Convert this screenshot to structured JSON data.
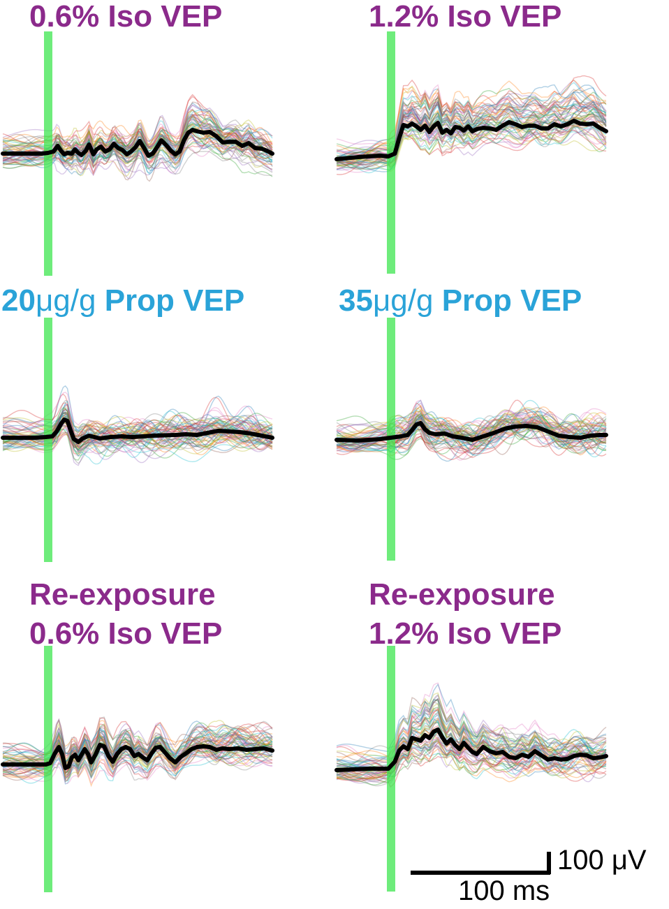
{
  "colors": {
    "iso": "#8b2a8b",
    "prop": "#2aa3d8",
    "stimulus": "#3ee64f",
    "mean": "#000000"
  },
  "panels": [
    {
      "id": "p1",
      "title_lines": [
        "0.6% Iso VEP"
      ],
      "title_color": "iso",
      "chart_data": {
        "type": "line",
        "title": "0.6% Iso VEP",
        "n_trials": 60,
        "mean_response": [
          [
            0,
            0
          ],
          [
            36,
            0
          ],
          [
            42,
            1
          ],
          [
            47,
            3
          ],
          [
            51,
            11
          ],
          [
            54,
            4
          ],
          [
            57,
            -1
          ],
          [
            60,
            1
          ],
          [
            64,
            0
          ],
          [
            67,
            6
          ],
          [
            70,
            1
          ],
          [
            73,
            -2
          ],
          [
            77,
            4
          ],
          [
            80,
            13
          ],
          [
            84,
            -1
          ],
          [
            87,
            6
          ],
          [
            91,
            10
          ],
          [
            95,
            3
          ],
          [
            99,
            6
          ],
          [
            103,
            14
          ],
          [
            107,
            8
          ],
          [
            111,
            5
          ],
          [
            115,
            -1
          ],
          [
            119,
            3
          ],
          [
            123,
            9
          ],
          [
            127,
            18
          ],
          [
            131,
            8
          ],
          [
            135,
            -3
          ],
          [
            139,
            0
          ],
          [
            143,
            9
          ],
          [
            147,
            19
          ],
          [
            151,
            13
          ],
          [
            156,
            4
          ],
          [
            160,
            -1
          ],
          [
            164,
            3
          ],
          [
            168,
            19
          ],
          [
            172,
            30
          ],
          [
            176,
            34
          ],
          [
            180,
            32
          ],
          [
            186,
            30
          ],
          [
            192,
            31
          ],
          [
            198,
            25
          ],
          [
            204,
            16
          ],
          [
            210,
            17
          ],
          [
            216,
            17
          ],
          [
            222,
            11
          ],
          [
            228,
            15
          ],
          [
            234,
            8
          ],
          [
            240,
            7
          ],
          [
            245,
            4
          ],
          [
            250,
            0
          ]
        ]
      }
    },
    {
      "id": "p2",
      "title_lines": [
        "1.2% Iso VEP"
      ],
      "title_color": "iso",
      "chart_data": {
        "type": "line",
        "title": "1.2% Iso VEP",
        "n_trials": 60,
        "mean_response": [
          [
            0,
            0
          ],
          [
            20,
            3
          ],
          [
            40,
            5
          ],
          [
            48,
            4
          ],
          [
            54,
            8
          ],
          [
            58,
            30
          ],
          [
            62,
            49
          ],
          [
            66,
            47
          ],
          [
            70,
            51
          ],
          [
            74,
            47
          ],
          [
            78,
            42
          ],
          [
            82,
            48
          ],
          [
            86,
            39
          ],
          [
            90,
            47
          ],
          [
            94,
            52
          ],
          [
            98,
            38
          ],
          [
            102,
            42
          ],
          [
            106,
            37
          ],
          [
            110,
            46
          ],
          [
            114,
            45
          ],
          [
            118,
            41
          ],
          [
            122,
            47
          ],
          [
            126,
            40
          ],
          [
            130,
            43
          ],
          [
            136,
            45
          ],
          [
            142,
            44
          ],
          [
            148,
            42
          ],
          [
            154,
            48
          ],
          [
            160,
            53
          ],
          [
            166,
            50
          ],
          [
            172,
            46
          ],
          [
            178,
            48
          ],
          [
            184,
            48
          ],
          [
            190,
            44
          ],
          [
            196,
            44
          ],
          [
            202,
            50
          ],
          [
            208,
            47
          ],
          [
            214,
            50
          ],
          [
            220,
            55
          ],
          [
            226,
            51
          ],
          [
            232,
            50
          ],
          [
            238,
            51
          ],
          [
            244,
            45
          ],
          [
            250,
            40
          ]
        ]
      }
    },
    {
      "id": "p3",
      "title_lines": [
        "20μg/g Prop VEP"
      ],
      "title_color": "prop",
      "chart_data": {
        "type": "line",
        "title": "20μg/g Prop VEP",
        "n_trials": 60,
        "mean_response": [
          [
            0,
            0
          ],
          [
            30,
            0
          ],
          [
            40,
            1
          ],
          [
            46,
            2
          ],
          [
            50,
            9
          ],
          [
            54,
            20
          ],
          [
            57,
            26
          ],
          [
            60,
            24
          ],
          [
            63,
            10
          ],
          [
            66,
            -2
          ],
          [
            70,
            -6
          ],
          [
            74,
            -1
          ],
          [
            80,
            3
          ],
          [
            90,
            -1
          ],
          [
            100,
            1
          ],
          [
            110,
            2
          ],
          [
            120,
            1
          ],
          [
            140,
            3
          ],
          [
            160,
            4
          ],
          [
            170,
            5
          ],
          [
            180,
            4
          ],
          [
            190,
            7
          ],
          [
            200,
            10
          ],
          [
            210,
            9
          ],
          [
            220,
            8
          ],
          [
            230,
            6
          ],
          [
            240,
            3
          ],
          [
            250,
            0
          ]
        ]
      }
    },
    {
      "id": "p4",
      "title_lines": [
        "35μg/g Prop VEP"
      ],
      "title_color": "prop",
      "chart_data": {
        "type": "line",
        "title": "35μg/g Prop VEP",
        "n_trials": 60,
        "mean_response": [
          [
            0,
            0
          ],
          [
            20,
            -1
          ],
          [
            40,
            1
          ],
          [
            50,
            3
          ],
          [
            60,
            5
          ],
          [
            66,
            7
          ],
          [
            70,
            14
          ],
          [
            74,
            22
          ],
          [
            78,
            24
          ],
          [
            82,
            15
          ],
          [
            86,
            10
          ],
          [
            92,
            8
          ],
          [
            100,
            9
          ],
          [
            108,
            5
          ],
          [
            116,
            3
          ],
          [
            126,
            0
          ],
          [
            136,
            5
          ],
          [
            146,
            10
          ],
          [
            156,
            16
          ],
          [
            166,
            19
          ],
          [
            176,
            20
          ],
          [
            186,
            18
          ],
          [
            196,
            12
          ],
          [
            206,
            6
          ],
          [
            216,
            4
          ],
          [
            226,
            3
          ],
          [
            236,
            6
          ],
          [
            244,
            7
          ],
          [
            250,
            7
          ]
        ]
      }
    },
    {
      "id": "p5",
      "title_lines": [
        "Re-exposure",
        "0.6% Iso VEP"
      ],
      "title_color": "iso",
      "chart_data": {
        "type": "line",
        "title": "Re-exposure 0.6% Iso VEP",
        "n_trials": 60,
        "mean_response": [
          [
            0,
            0
          ],
          [
            40,
            0
          ],
          [
            44,
            2
          ],
          [
            48,
            15
          ],
          [
            52,
            25
          ],
          [
            55,
            15
          ],
          [
            58,
            -5
          ],
          [
            61,
            -3
          ],
          [
            64,
            10
          ],
          [
            67,
            14
          ],
          [
            70,
            6
          ],
          [
            73,
            14
          ],
          [
            76,
            22
          ],
          [
            79,
            15
          ],
          [
            82,
            3
          ],
          [
            86,
            14
          ],
          [
            90,
            28
          ],
          [
            94,
            26
          ],
          [
            98,
            12
          ],
          [
            102,
            4
          ],
          [
            106,
            15
          ],
          [
            110,
            22
          ],
          [
            114,
            25
          ],
          [
            118,
            22
          ],
          [
            122,
            12
          ],
          [
            126,
            15
          ],
          [
            130,
            10
          ],
          [
            134,
            6
          ],
          [
            138,
            16
          ],
          [
            142,
            24
          ],
          [
            146,
            25
          ],
          [
            150,
            18
          ],
          [
            155,
            9
          ],
          [
            160,
            3
          ],
          [
            165,
            11
          ],
          [
            170,
            16
          ],
          [
            175,
            22
          ],
          [
            180,
            25
          ],
          [
            186,
            26
          ],
          [
            192,
            25
          ],
          [
            198,
            21
          ],
          [
            204,
            23
          ],
          [
            210,
            22
          ],
          [
            218,
            23
          ],
          [
            226,
            21
          ],
          [
            234,
            22
          ],
          [
            242,
            23
          ],
          [
            250,
            20
          ]
        ]
      }
    },
    {
      "id": "p6",
      "title_lines": [
        "Re-exposure",
        "1.2% Iso VEP"
      ],
      "title_color": "iso",
      "chart_data": {
        "type": "line",
        "title": "Re-exposure 1.2% Iso VEP",
        "n_trials": 60,
        "mean_response": [
          [
            0,
            0
          ],
          [
            30,
            2
          ],
          [
            48,
            2
          ],
          [
            54,
            12
          ],
          [
            58,
            28
          ],
          [
            62,
            34
          ],
          [
            66,
            30
          ],
          [
            70,
            46
          ],
          [
            74,
            44
          ],
          [
            78,
            42
          ],
          [
            82,
            50
          ],
          [
            86,
            46
          ],
          [
            90,
            55
          ],
          [
            94,
            58
          ],
          [
            98,
            47
          ],
          [
            102,
            38
          ],
          [
            106,
            44
          ],
          [
            110,
            36
          ],
          [
            114,
            30
          ],
          [
            118,
            39
          ],
          [
            122,
            32
          ],
          [
            126,
            26
          ],
          [
            130,
            23
          ],
          [
            136,
            33
          ],
          [
            142,
            27
          ],
          [
            148,
            24
          ],
          [
            154,
            26
          ],
          [
            160,
            19
          ],
          [
            166,
            17
          ],
          [
            172,
            22
          ],
          [
            178,
            19
          ],
          [
            184,
            27
          ],
          [
            190,
            21
          ],
          [
            196,
            15
          ],
          [
            202,
            17
          ],
          [
            208,
            15
          ],
          [
            214,
            16
          ],
          [
            220,
            20
          ],
          [
            226,
            22
          ],
          [
            232,
            21
          ],
          [
            238,
            17
          ],
          [
            244,
            18
          ],
          [
            250,
            20
          ]
        ]
      }
    }
  ],
  "scale_bar": {
    "voltage_label": "100 μV",
    "time_label": "100 ms"
  }
}
